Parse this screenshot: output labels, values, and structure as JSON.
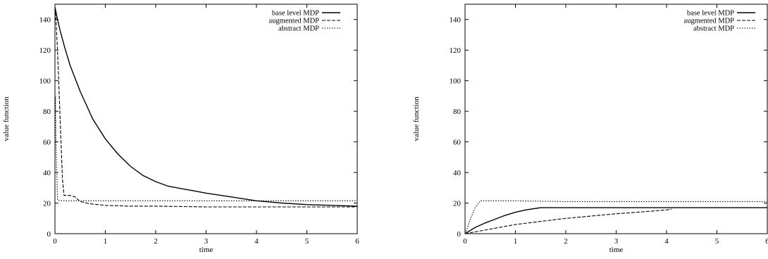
{
  "chart_data": [
    {
      "type": "line",
      "xlabel": "time",
      "ylabel": "value function",
      "xlim": [
        0,
        6
      ],
      "ylim": [
        0,
        150
      ],
      "xticks": [
        "0",
        "1",
        "2",
        "3",
        "4",
        "5",
        "6"
      ],
      "yticks": [
        "0",
        "20",
        "40",
        "60",
        "80",
        "100",
        "120",
        "140"
      ],
      "grid": false,
      "legend_position": "top-right",
      "series": [
        {
          "name": "base level MDP",
          "style": "solid",
          "x": [
            0,
            0.05,
            0.1,
            0.2,
            0.3,
            0.5,
            0.75,
            1.0,
            1.25,
            1.5,
            1.75,
            2.0,
            2.25,
            2.5,
            2.75,
            3.0,
            3.5,
            4.0,
            4.5,
            5.0,
            5.5,
            6.0
          ],
          "y": [
            148,
            140,
            133,
            121,
            110,
            93,
            75,
            62,
            52,
            44,
            38,
            34,
            31,
            29.5,
            28,
            26.5,
            24,
            21.5,
            20,
            19,
            18.5,
            18
          ]
        },
        {
          "name": "augmented MDP",
          "style": "dashed",
          "x": [
            0,
            0.02,
            0.05,
            0.08,
            0.12,
            0.15,
            0.18,
            0.3,
            0.4,
            0.5,
            0.7,
            1.0,
            1.5,
            2.0,
            3.0,
            4.0,
            5.0,
            6.0
          ],
          "y": [
            148,
            140,
            120,
            95,
            60,
            35,
            25,
            25,
            24,
            21,
            19.5,
            18.5,
            18,
            18,
            17.5,
            17.5,
            17.5,
            17.5
          ]
        },
        {
          "name": "abstract MDP",
          "style": "dotted",
          "x": [
            0,
            0.01,
            0.02,
            0.05,
            0.1,
            0.5,
            1.0,
            2.0,
            3.0,
            4.0,
            5.0,
            6.0
          ],
          "y": [
            75,
            90,
            60,
            22,
            21.5,
            21.5,
            21.5,
            21.5,
            21.5,
            21.5,
            21.5,
            21.5
          ]
        }
      ]
    },
    {
      "type": "line",
      "xlabel": "time",
      "ylabel": "value function",
      "xlim": [
        0,
        6
      ],
      "ylim": [
        0,
        150
      ],
      "xticks": [
        "0",
        "1",
        "2",
        "3",
        "4",
        "5",
        "6"
      ],
      "yticks": [
        "0",
        "20",
        "40",
        "60",
        "80",
        "100",
        "120",
        "140"
      ],
      "grid": false,
      "legend_position": "top-right",
      "series": [
        {
          "name": "base level MDP",
          "style": "solid",
          "x": [
            0,
            0.2,
            0.4,
            0.6,
            0.8,
            1.0,
            1.2,
            1.5,
            2.0,
            3.0,
            4.0,
            5.0,
            6.0
          ],
          "y": [
            0,
            4,
            7,
            9.5,
            12,
            14,
            15.5,
            17,
            17,
            17,
            17,
            17,
            17
          ]
        },
        {
          "name": "augmented MDP",
          "style": "dashed",
          "x": [
            0,
            0.5,
            1.0,
            1.5,
            2.0,
            2.5,
            3.0,
            3.5,
            4.0,
            4.1
          ],
          "y": [
            0,
            3,
            6,
            8,
            10,
            11.5,
            13,
            14.2,
            15.5,
            16
          ]
        },
        {
          "name": "abstract MDP",
          "style": "dotted",
          "x": [
            0,
            0.05,
            0.1,
            0.2,
            0.3,
            0.5,
            1.0,
            2.0,
            3.0,
            4.0,
            5.0,
            6.0
          ],
          "y": [
            0,
            4,
            9,
            17,
            21.5,
            21.5,
            21.5,
            21,
            21,
            21,
            21,
            21
          ]
        }
      ]
    }
  ]
}
